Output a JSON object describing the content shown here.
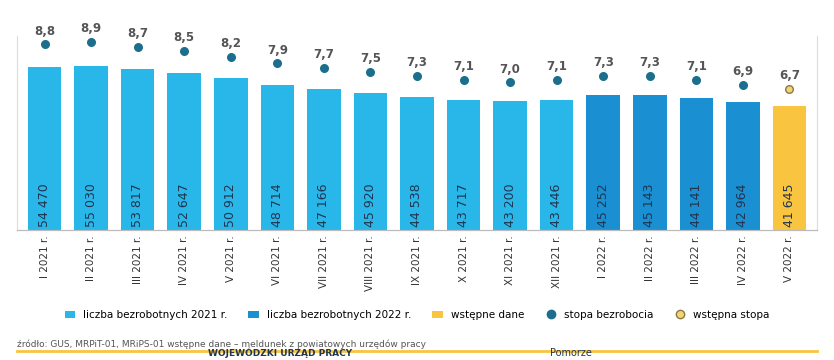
{
  "chart_data": {
    "type": "bar",
    "categories": [
      "I 2021 r.",
      "II 2021 r.",
      "III 2021 r.",
      "IV 2021 r.",
      "V 2021 r.",
      "VI 2021 r.",
      "VII 2021 r.",
      "VIII 2021 r.",
      "IX 2021 r.",
      "X 2021 r.",
      "XI 2021 r.",
      "XII 2021 r.",
      "I 2022 r.",
      "II 2022 r.",
      "III 2022 r.",
      "IV 2022 r.",
      "V 2022 r."
    ],
    "series": [
      {
        "name": "liczba bezrobotnych 2021 r.",
        "type": "bar",
        "color": "#29b6e8",
        "values": [
          54470,
          55030,
          53817,
          52647,
          50912,
          48714,
          47166,
          45920,
          44538,
          43717,
          43200,
          43446,
          null,
          null,
          null,
          null,
          null
        ],
        "value_labels": [
          "54 470",
          "55 030",
          "53 817",
          "52 647",
          "50 912",
          "48 714",
          "47 166",
          "45 920",
          "44 538",
          "43 717",
          "43 200",
          "43 446",
          null,
          null,
          null,
          null,
          null
        ]
      },
      {
        "name": "liczba bezrobotnych 2022 r.",
        "type": "bar",
        "color": "#1a8fd2",
        "values": [
          null,
          null,
          null,
          null,
          null,
          null,
          null,
          null,
          null,
          null,
          null,
          null,
          45252,
          45143,
          44141,
          42964,
          null
        ],
        "value_labels": [
          null,
          null,
          null,
          null,
          null,
          null,
          null,
          null,
          null,
          null,
          null,
          null,
          "45 252",
          "45 143",
          "44 141",
          "42 964",
          null
        ]
      },
      {
        "name": "wstępne dane",
        "type": "bar",
        "color": "#f9c440",
        "values": [
          null,
          null,
          null,
          null,
          null,
          null,
          null,
          null,
          null,
          null,
          null,
          null,
          null,
          null,
          null,
          null,
          41645
        ],
        "value_labels": [
          null,
          null,
          null,
          null,
          null,
          null,
          null,
          null,
          null,
          null,
          null,
          null,
          null,
          null,
          null,
          null,
          "41 645"
        ]
      },
      {
        "name": "stopa bezrobocia",
        "type": "scatter",
        "axis": "y2",
        "color": "#1b6f8c",
        "marker": "o",
        "values": [
          8.8,
          8.9,
          8.7,
          8.5,
          8.2,
          7.9,
          7.7,
          7.5,
          7.3,
          7.1,
          7.0,
          7.1,
          7.3,
          7.3,
          7.1,
          6.9,
          null
        ],
        "value_labels": [
          "8,8",
          "8,9",
          "8,7",
          "8,5",
          "8,2",
          "7,9",
          "7,7",
          "7,5",
          "7,3",
          "7,1",
          "7,0",
          "7,1",
          "7,3",
          "7,3",
          "7,1",
          "6,9",
          null
        ]
      },
      {
        "name": "wstępna stopa",
        "type": "scatter",
        "axis": "y2",
        "color": "#f2d27a",
        "marker": "o",
        "values": [
          null,
          null,
          null,
          null,
          null,
          null,
          null,
          null,
          null,
          null,
          null,
          null,
          null,
          null,
          null,
          null,
          6.7
        ],
        "value_labels": [
          null,
          null,
          null,
          null,
          null,
          null,
          null,
          null,
          null,
          null,
          null,
          null,
          null,
          null,
          null,
          null,
          "6,7"
        ]
      }
    ],
    "ylim": [
      0,
      65000
    ],
    "yticks": [],
    "y2lim": [
      0,
      9.2
    ],
    "y2ticks": [],
    "tick_labels": "x",
    "data_labels": true,
    "grid": false,
    "legend": "lower center",
    "source": "źródło: GUS, MRPiT-01, MRiPS-01 wstępne dane – meldunek z powiatowych urzędów pracy",
    "footer_texts": [
      "WOJEWÓDZKI URZĄD PRACY",
      "Pomorze"
    ]
  }
}
